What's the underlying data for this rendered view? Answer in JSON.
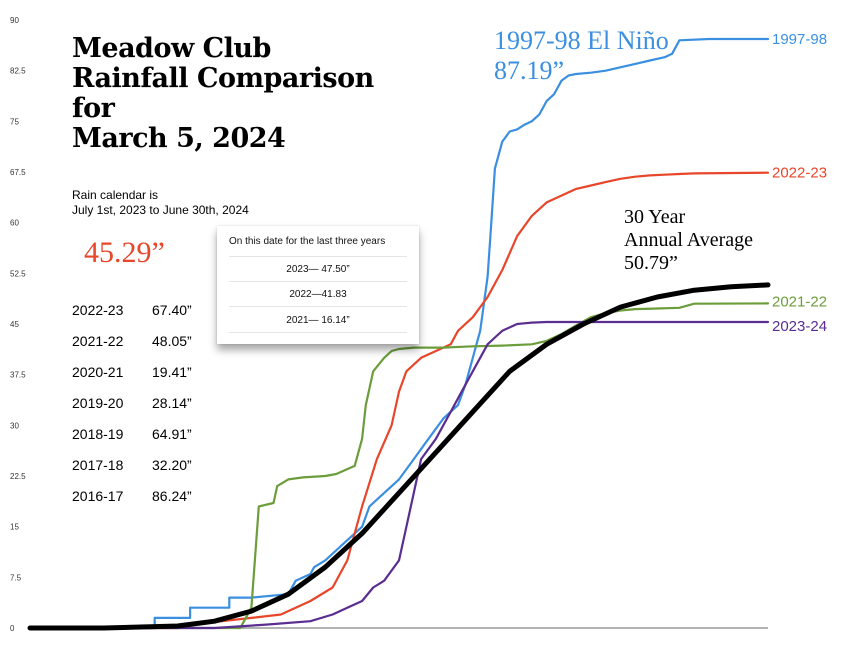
{
  "title_lines": [
    "Meadow Club",
    "Rainfall Comparison",
    "for",
    "March 5, 2024"
  ],
  "subtitle_lines": [
    "Rain calendar is",
    "July 1st, 2023 to June 30th, 2024"
  ],
  "current_total": "45.29”",
  "season_totals": [
    {
      "season": "2022-23",
      "total": "67.40”"
    },
    {
      "season": "2021-22",
      "total": "48.05”"
    },
    {
      "season": "2020-21",
      "total": "19.41”"
    },
    {
      "season": "2019-20",
      "total": "28.14”"
    },
    {
      "season": "2018-19",
      "total": "64.91”"
    },
    {
      "season": "2017-18",
      "total": "32.20”"
    },
    {
      "season": "2016-17",
      "total": "86.24”"
    }
  ],
  "popup": {
    "heading": "On this date for the last three years",
    "lines": [
      "2023— 47.50”",
      "2022—41.83",
      "2021— 16.14”"
    ]
  },
  "annotations": {
    "el_nino": [
      "1997-98 El Niño",
      "87.19”"
    ],
    "average": [
      "30 Year",
      "Annual Average",
      "50.79”"
    ]
  },
  "chart_data": {
    "type": "line",
    "title": "Meadow Club Rainfall Comparison for March 5, 2024",
    "xlabel": "",
    "ylabel": "",
    "x_range": [
      0,
      100
    ],
    "ylim": [
      0,
      90
    ],
    "y_ticks": [
      "0",
      "7.5",
      "15",
      "22.5",
      "30",
      "37.5",
      "45",
      "52.5",
      "60",
      "67.5",
      "75",
      "82.5",
      "90"
    ],
    "grid": false,
    "series": [
      {
        "name": "1997-98",
        "color": "#3b8fe0",
        "x": [
          0,
          10,
          16.9,
          16.9,
          21.7,
          21.7,
          27,
          27,
          30,
          35,
          36,
          38,
          38.5,
          40,
          43,
          45,
          46,
          48,
          50,
          52,
          54,
          56,
          58,
          59,
          60,
          61,
          62,
          62.5,
          63,
          64,
          65,
          66,
          67,
          68,
          69,
          70,
          71,
          71.5,
          72,
          73,
          74,
          76,
          78,
          80,
          82,
          84,
          86,
          87,
          88,
          92,
          100
        ],
        "y": [
          0,
          0,
          0,
          1.5,
          1.5,
          3,
          3,
          4.5,
          4.5,
          5,
          7,
          8,
          9,
          10,
          13,
          15,
          18,
          20,
          22,
          25,
          28,
          31,
          33,
          36,
          40,
          44,
          52,
          60,
          68,
          72,
          73.5,
          73.8,
          74.5,
          75,
          76,
          78,
          79,
          80,
          81,
          81.8,
          82,
          82.2,
          82.5,
          83,
          83.5,
          84,
          84.5,
          85,
          87,
          87.19,
          87.19
        ]
      },
      {
        "name": "2022-23",
        "color": "#e8462a",
        "x": [
          0,
          20,
          22.5,
          26,
          30,
          34,
          38,
          41,
          43,
          45,
          47,
          49,
          50,
          51,
          53,
          55,
          56,
          57,
          58,
          60,
          62,
          64,
          66,
          68,
          70,
          72,
          74,
          76,
          78,
          80,
          82,
          84,
          86,
          88,
          90,
          100
        ],
        "y": [
          0,
          0,
          0.5,
          1,
          1.5,
          2,
          4,
          6,
          10,
          18,
          25,
          30,
          35,
          38,
          40,
          41,
          41.5,
          42,
          44,
          46,
          49,
          53,
          58,
          61,
          63,
          64,
          65,
          65.5,
          66,
          66.5,
          66.8,
          67,
          67.1,
          67.2,
          67.3,
          67.4
        ]
      },
      {
        "name": "2021-22",
        "color": "#6b9d3a",
        "x": [
          0,
          28.5,
          29,
          30,
          31,
          33,
          33.5,
          35,
          37,
          40,
          41.5,
          44,
          45,
          45.5,
          46.5,
          48,
          49,
          50,
          52,
          56,
          60,
          64,
          68,
          70,
          72,
          74,
          76,
          78,
          80,
          82,
          85,
          88,
          90,
          100
        ],
        "y": [
          0,
          0,
          1,
          3,
          18,
          18.5,
          21,
          22,
          22.3,
          22.5,
          22.8,
          24,
          28,
          33,
          38,
          40,
          41,
          41.3,
          41.5,
          41.5,
          41.7,
          41.8,
          42,
          42.5,
          43.5,
          44.8,
          46,
          46.6,
          47,
          47.2,
          47.3,
          47.4,
          48,
          48.05
        ]
      },
      {
        "name": "2023-24",
        "color": "#5a2d91",
        "x": [
          0,
          25,
          32,
          38,
          41,
          43,
          45,
          46.5,
          48,
          50,
          51,
          52,
          53,
          55,
          57,
          59,
          60,
          61,
          62,
          63,
          64,
          65,
          66,
          67,
          68,
          70,
          72,
          74,
          76,
          78,
          80,
          84,
          90,
          100
        ],
        "y": [
          0,
          0,
          0.5,
          1,
          2,
          3,
          4,
          6,
          7,
          10,
          15,
          20,
          25,
          28,
          32,
          36,
          38,
          40,
          42,
          43,
          44,
          44.5,
          45,
          45.1,
          45.2,
          45.29,
          45.29,
          45.29,
          45.29,
          45.29,
          45.29,
          45.29,
          45.29,
          45.29
        ]
      },
      {
        "name": "30 Year Annual Average",
        "color": "#000000",
        "x": [
          0,
          10,
          20,
          25,
          30,
          35,
          40,
          45,
          50,
          55,
          60,
          65,
          70,
          75,
          80,
          85,
          90,
          95,
          100
        ],
        "y": [
          0,
          0,
          0.3,
          1,
          2.5,
          5,
          9,
          14,
          20,
          26,
          32,
          38,
          42,
          45,
          47.5,
          49,
          50,
          50.5,
          50.79
        ]
      }
    ]
  }
}
